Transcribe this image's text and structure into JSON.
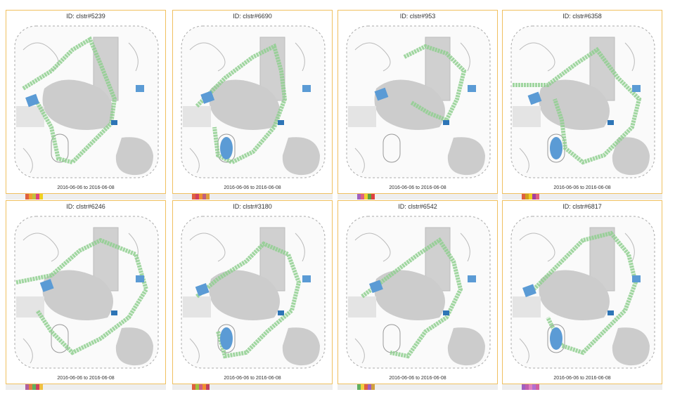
{
  "panels": [
    {
      "id_label": "ID: clstr#5239",
      "date_range": "2016-06-06 to 2016-06-08"
    },
    {
      "id_label": "ID: clstr#6690",
      "date_range": "2016-06-06 to 2016-06-08"
    },
    {
      "id_label": "ID: clstr#953",
      "date_range": "2016-06-06 to 2016-06-08"
    },
    {
      "id_label": "ID: clstr#6358",
      "date_range": "2016-06-06 to 2016-06-08"
    },
    {
      "id_label": "ID: clstr#6246",
      "date_range": "2016-06-06 to 2016-06-08"
    },
    {
      "id_label": "ID: clstr#3180",
      "date_range": "2016-06-06 to 2016-06-08"
    },
    {
      "id_label": "ID: clstr#6542",
      "date_range": "2016-06-06 to 2016-06-08"
    },
    {
      "id_label": "ID: clstr#6817",
      "date_range": "2016-06-06 to 2016-06-08"
    }
  ]
}
